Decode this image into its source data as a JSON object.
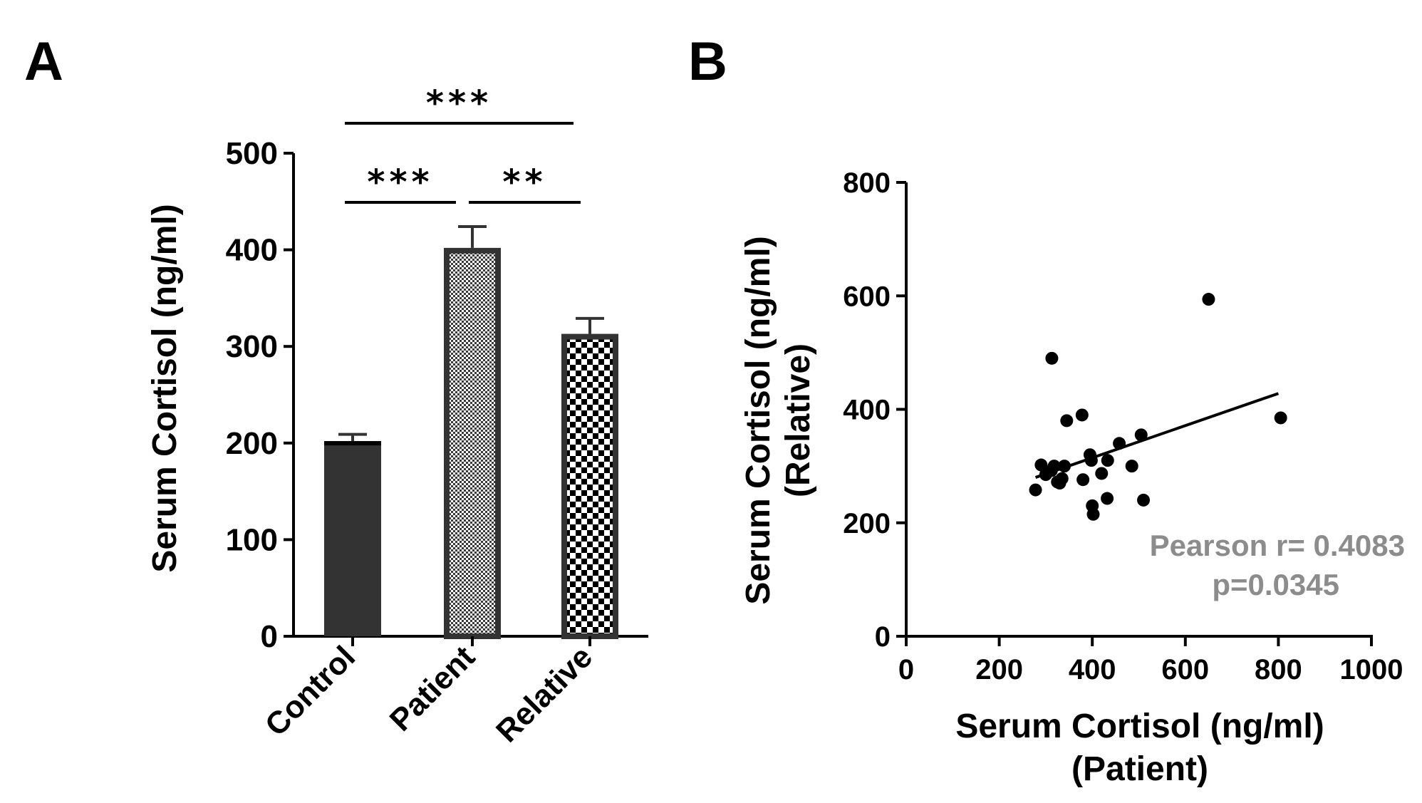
{
  "panels": {
    "a_label": "A",
    "b_label": "B"
  },
  "colors": {
    "ink": "#000000",
    "bar_dark": "#333333",
    "annotation_gray": "#8c8c8c"
  },
  "chart_data": [
    {
      "type": "bar",
      "panel": "A",
      "categories": [
        "Control",
        "Patient",
        "Relative"
      ],
      "values": [
        202,
        402,
        313
      ],
      "errors": [
        7,
        22,
        16
      ],
      "fills": [
        "solid",
        "fine-dots",
        "checker"
      ],
      "ylabel": "Serum Cortisol (ng/ml)",
      "ylim": [
        0,
        500
      ],
      "yticks": [
        "0",
        "100",
        "200",
        "300",
        "400",
        "500"
      ],
      "significance": [
        {
          "from": 0,
          "to": 1,
          "label": "***"
        },
        {
          "from": 1,
          "to": 2,
          "label": "**"
        },
        {
          "from": 0,
          "to": 2,
          "label": "***"
        }
      ]
    },
    {
      "type": "scatter",
      "panel": "B",
      "xlabel": "Serum Cortisol (ng/ml)",
      "xlabel_sub": "(Patient)",
      "ylabel": "Serum Cortisol (ng/ml)",
      "ylabel_sub": "(Relative)",
      "xlim": [
        0,
        1000
      ],
      "ylim": [
        0,
        800
      ],
      "xticks": [
        "0",
        "200",
        "400",
        "600",
        "800",
        "1000"
      ],
      "yticks": [
        "0",
        "200",
        "400",
        "600",
        "800"
      ],
      "points": [
        [
          278,
          258
        ],
        [
          290,
          302
        ],
        [
          300,
          285
        ],
        [
          312,
          292
        ],
        [
          313,
          490
        ],
        [
          318,
          300
        ],
        [
          325,
          272
        ],
        [
          330,
          270
        ],
        [
          335,
          278
        ],
        [
          340,
          300
        ],
        [
          345,
          380
        ],
        [
          378,
          390
        ],
        [
          380,
          276
        ],
        [
          395,
          320
        ],
        [
          398,
          310
        ],
        [
          400,
          230
        ],
        [
          402,
          215
        ],
        [
          420,
          287
        ],
        [
          432,
          243
        ],
        [
          433,
          310
        ],
        [
          458,
          340
        ],
        [
          485,
          300
        ],
        [
          505,
          355
        ],
        [
          510,
          240
        ],
        [
          650,
          594
        ],
        [
          805,
          385
        ]
      ],
      "fit_line": {
        "x": [
          278,
          800
        ],
        "y": [
          280,
          428
        ]
      },
      "annotation": {
        "line1": "Pearson r= 0.4083",
        "line2": "p=0.0345"
      }
    }
  ]
}
